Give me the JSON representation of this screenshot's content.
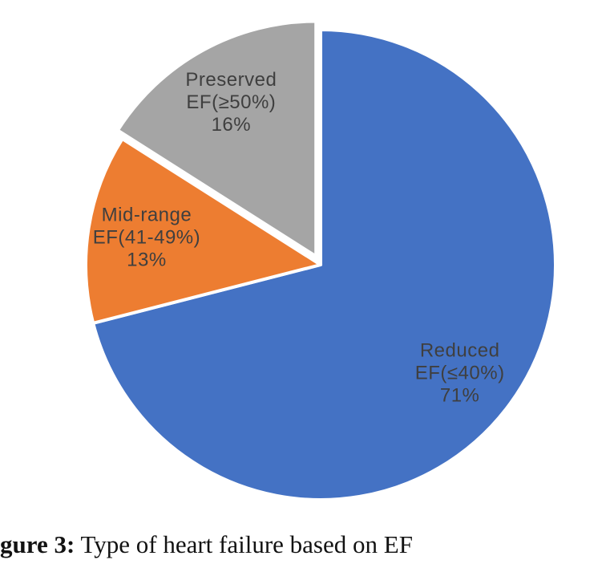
{
  "chart_data": {
    "type": "pie",
    "title": "",
    "categories": [
      "Reduced EF(≤40%)",
      "Mid-range EF(41-49%)",
      "Preserved EF(≥50%)"
    ],
    "values": [
      71,
      13,
      16
    ],
    "unit": "%",
    "colors": [
      "#4472C4",
      "#ED7D31",
      "#A5A5A5"
    ],
    "label_lines": [
      [
        "Reduced",
        "EF(≤40%)",
        "71%"
      ],
      [
        "Mid-range",
        "EF(41-49%)",
        "13%"
      ],
      [
        "Preserved",
        "EF(≥50%)",
        "16%"
      ]
    ],
    "start_angle_deg": 0,
    "direction": "clockwise",
    "exploded_slice": 2,
    "data_labels": "inside",
    "legend": "none",
    "grid": false,
    "label_color": "#3f3f3f",
    "slice_border_color": "#ffffff"
  },
  "caption": {
    "bold": "gure 3:",
    "rest": " Type of heart failure based on EF"
  }
}
